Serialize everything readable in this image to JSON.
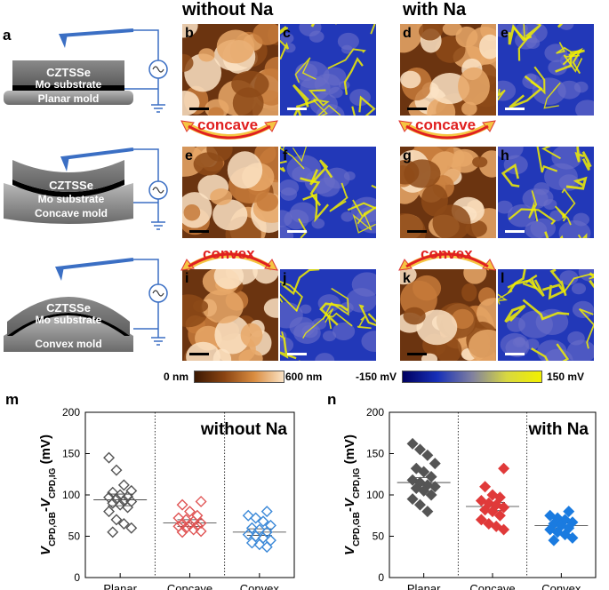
{
  "headers": {
    "without": "without Na",
    "with": "with Na"
  },
  "panel_letters": {
    "a": "a",
    "b": "b",
    "c": "c",
    "d": "d",
    "e1": "e",
    "e2": "e",
    "f": "f",
    "g": "g",
    "h": "h",
    "i": "i",
    "j": "j",
    "k": "k",
    "l": "l",
    "m": "m",
    "n": "n"
  },
  "schematic": {
    "planar": {
      "l1": "CZTSSe",
      "l2": "Mo substrate",
      "l3": "Planar mold"
    },
    "concave": {
      "l1": "CZTSSe",
      "l2": "Mo substrate",
      "l3": "Concave mold"
    },
    "convex": {
      "l1": "CZTSSe",
      "l2": "Mo substrate",
      "l3": "Convex mold"
    }
  },
  "arrows": {
    "concave": "concave",
    "convex": "convex"
  },
  "colorbars": {
    "height": {
      "min": "0 nm",
      "max": "600 nm"
    },
    "cpd": {
      "min": "-150 mV",
      "max": "150 mV"
    }
  },
  "colors": {
    "afm_dark": "#5a2a08",
    "afm_light": "#fbe3c4",
    "kpfm_blue": "#1830b8",
    "kpfm_yellow": "#f2f000",
    "schematic_blue": "#3b6fc4"
  },
  "chart_data": [
    {
      "type": "scatter",
      "title": "without Na",
      "ylabel": "VCPD,GB-VCPD,IG (mV)",
      "ylim": [
        0,
        200
      ],
      "yticks": [
        "0",
        "50",
        "100",
        "150",
        "200"
      ],
      "categories": [
        "Planar",
        "Concave",
        "Convex"
      ],
      "marker": "diamond-open",
      "series": [
        {
          "category": "Planar",
          "color": "#555555",
          "mean": 94,
          "sem": 7,
          "values": [
            145,
            130,
            112,
            105,
            103,
            100,
            98,
            97,
            95,
            93,
            92,
            90,
            88,
            85,
            80,
            70,
            65,
            60,
            55
          ]
        },
        {
          "category": "Concave",
          "color": "#e05555",
          "mean": 66,
          "sem": 4,
          "values": [
            92,
            88,
            80,
            75,
            72,
            70,
            68,
            66,
            65,
            64,
            63,
            62,
            60,
            58,
            56,
            55
          ]
        },
        {
          "category": "Convex",
          "color": "#3a88d8",
          "mean": 55,
          "sem": 4,
          "values": [
            80,
            75,
            72,
            68,
            63,
            60,
            58,
            55,
            52,
            50,
            48,
            45,
            42,
            40,
            37
          ]
        }
      ]
    },
    {
      "type": "scatter",
      "title": "with Na",
      "ylabel": "VCPD,GB-VCPD,IG (mV)",
      "ylim": [
        0,
        200
      ],
      "yticks": [
        "0",
        "50",
        "100",
        "150",
        "200"
      ],
      "categories": [
        "Planar",
        "Concave",
        "Convex"
      ],
      "marker": "diamond-filled",
      "series": [
        {
          "category": "Planar",
          "color": "#555555",
          "mean": 115,
          "sem": 6,
          "values": [
            162,
            155,
            148,
            138,
            132,
            128,
            122,
            118,
            115,
            112,
            110,
            108,
            105,
            100,
            95,
            88,
            80
          ]
        },
        {
          "category": "Concave",
          "color": "#e03a3a",
          "mean": 86,
          "sem": 5,
          "values": [
            132,
            110,
            100,
            97,
            93,
            90,
            88,
            85,
            82,
            80,
            75,
            70,
            65,
            62,
            58
          ]
        },
        {
          "category": "Convex",
          "color": "#1a7be0",
          "mean": 63,
          "sem": 3,
          "values": [
            80,
            75,
            72,
            70,
            67,
            65,
            63,
            60,
            58,
            55,
            52,
            48,
            45
          ]
        }
      ]
    }
  ],
  "plot_labels": {
    "m_y_main": "V",
    "m_y_sub1": "CPD,GB",
    "m_y_mid": "-V",
    "m_y_sub2": "CPD,IG",
    "m_y_unit": " (mV)"
  }
}
